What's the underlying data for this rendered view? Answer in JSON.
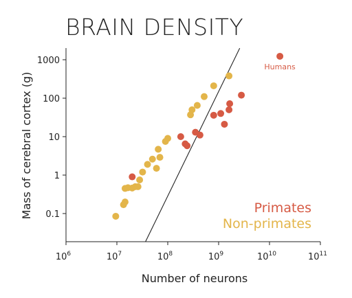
{
  "chart_data": {
    "type": "scatter",
    "title": "BRAIN DENSITY",
    "xlabel": "Number of neurons",
    "ylabel": "Mass of cerebral cortex (g)",
    "x_scale": "log",
    "y_scale": "log",
    "xlim": [
      1000000,
      100000000000
    ],
    "ylim": [
      0.02,
      2000
    ],
    "x_ticks": [
      {
        "value": 1000000,
        "base": "10",
        "exp": "6"
      },
      {
        "value": 10000000,
        "base": "10",
        "exp": "7"
      },
      {
        "value": 100000000,
        "base": "10",
        "exp": "8"
      },
      {
        "value": 1000000000,
        "base": "10",
        "exp": "9"
      },
      {
        "value": 10000000000,
        "base": "10",
        "exp": "10"
      },
      {
        "value": 100000000000,
        "base": "10",
        "exp": "11"
      }
    ],
    "y_ticks": [
      {
        "value": 0.1,
        "label": "0.1"
      },
      {
        "value": 1,
        "label": "1"
      },
      {
        "value": 10,
        "label": "10"
      },
      {
        "value": 100,
        "label": "100"
      },
      {
        "value": 1000,
        "label": "1000"
      }
    ],
    "legend_placement": "bottom-right",
    "trend_line": {
      "x": [
        31600000,
        2600000000
      ],
      "y": [
        0.0125,
        2000
      ],
      "color": "#222222"
    },
    "series": [
      {
        "name": "Primates",
        "color": "#d65a44",
        "points": [
          {
            "x": 20000000,
            "y": 0.9
          },
          {
            "x": 180000000,
            "y": 10
          },
          {
            "x": 220000000,
            "y": 6.5
          },
          {
            "x": 240000000,
            "y": 5.8
          },
          {
            "x": 350000000,
            "y": 13
          },
          {
            "x": 430000000,
            "y": 11
          },
          {
            "x": 800000000,
            "y": 36
          },
          {
            "x": 1100000000,
            "y": 40
          },
          {
            "x": 1300000000,
            "y": 21
          },
          {
            "x": 1600000000,
            "y": 50
          },
          {
            "x": 1650000000,
            "y": 72
          },
          {
            "x": 2800000000,
            "y": 120
          },
          {
            "x": 16000000000,
            "y": 1230
          }
        ]
      },
      {
        "name": "Non-primates",
        "color": "#e3b54a",
        "points": [
          {
            "x": 9500000,
            "y": 0.085
          },
          {
            "x": 13500000,
            "y": 0.17
          },
          {
            "x": 14500000,
            "y": 0.2
          },
          {
            "x": 14500000,
            "y": 0.45
          },
          {
            "x": 16500000,
            "y": 0.47
          },
          {
            "x": 20000000,
            "y": 0.46
          },
          {
            "x": 23000000,
            "y": 0.5
          },
          {
            "x": 26000000,
            "y": 0.5
          },
          {
            "x": 28000000,
            "y": 0.75
          },
          {
            "x": 32000000,
            "y": 1.2
          },
          {
            "x": 40000000,
            "y": 1.9
          },
          {
            "x": 50000000,
            "y": 2.6
          },
          {
            "x": 60000000,
            "y": 1.5
          },
          {
            "x": 65000000,
            "y": 4.7
          },
          {
            "x": 70000000,
            "y": 2.9
          },
          {
            "x": 90000000,
            "y": 7.5
          },
          {
            "x": 100000000,
            "y": 9
          },
          {
            "x": 280000000,
            "y": 37
          },
          {
            "x": 300000000,
            "y": 50
          },
          {
            "x": 380000000,
            "y": 65
          },
          {
            "x": 520000000,
            "y": 110
          },
          {
            "x": 800000000,
            "y": 210
          },
          {
            "x": 1600000000,
            "y": 380
          }
        ]
      }
    ],
    "annotations": [
      {
        "text": "Humans",
        "x": 16000000000,
        "y": 1230
      }
    ],
    "legend": [
      {
        "label": "Primates",
        "color": "#d65a44"
      },
      {
        "label": "Non-primates",
        "color": "#e3b54a"
      }
    ]
  }
}
